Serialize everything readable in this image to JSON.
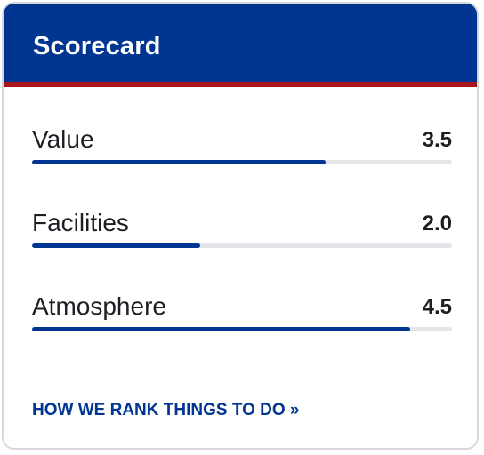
{
  "header": {
    "title": "Scorecard"
  },
  "scores": [
    {
      "label": "Value",
      "value": "3.5",
      "max": 5
    },
    {
      "label": "Facilities",
      "value": "2.0",
      "max": 5
    },
    {
      "label": "Atmosphere",
      "value": "4.5",
      "max": 5
    }
  ],
  "footer": {
    "link_label": "HOW WE RANK THINGS TO DO »"
  },
  "colors": {
    "header_bg": "#003592",
    "accent_rule": "#a8151c",
    "bar_fill": "#003592",
    "bar_track": "#e3e5e8"
  }
}
